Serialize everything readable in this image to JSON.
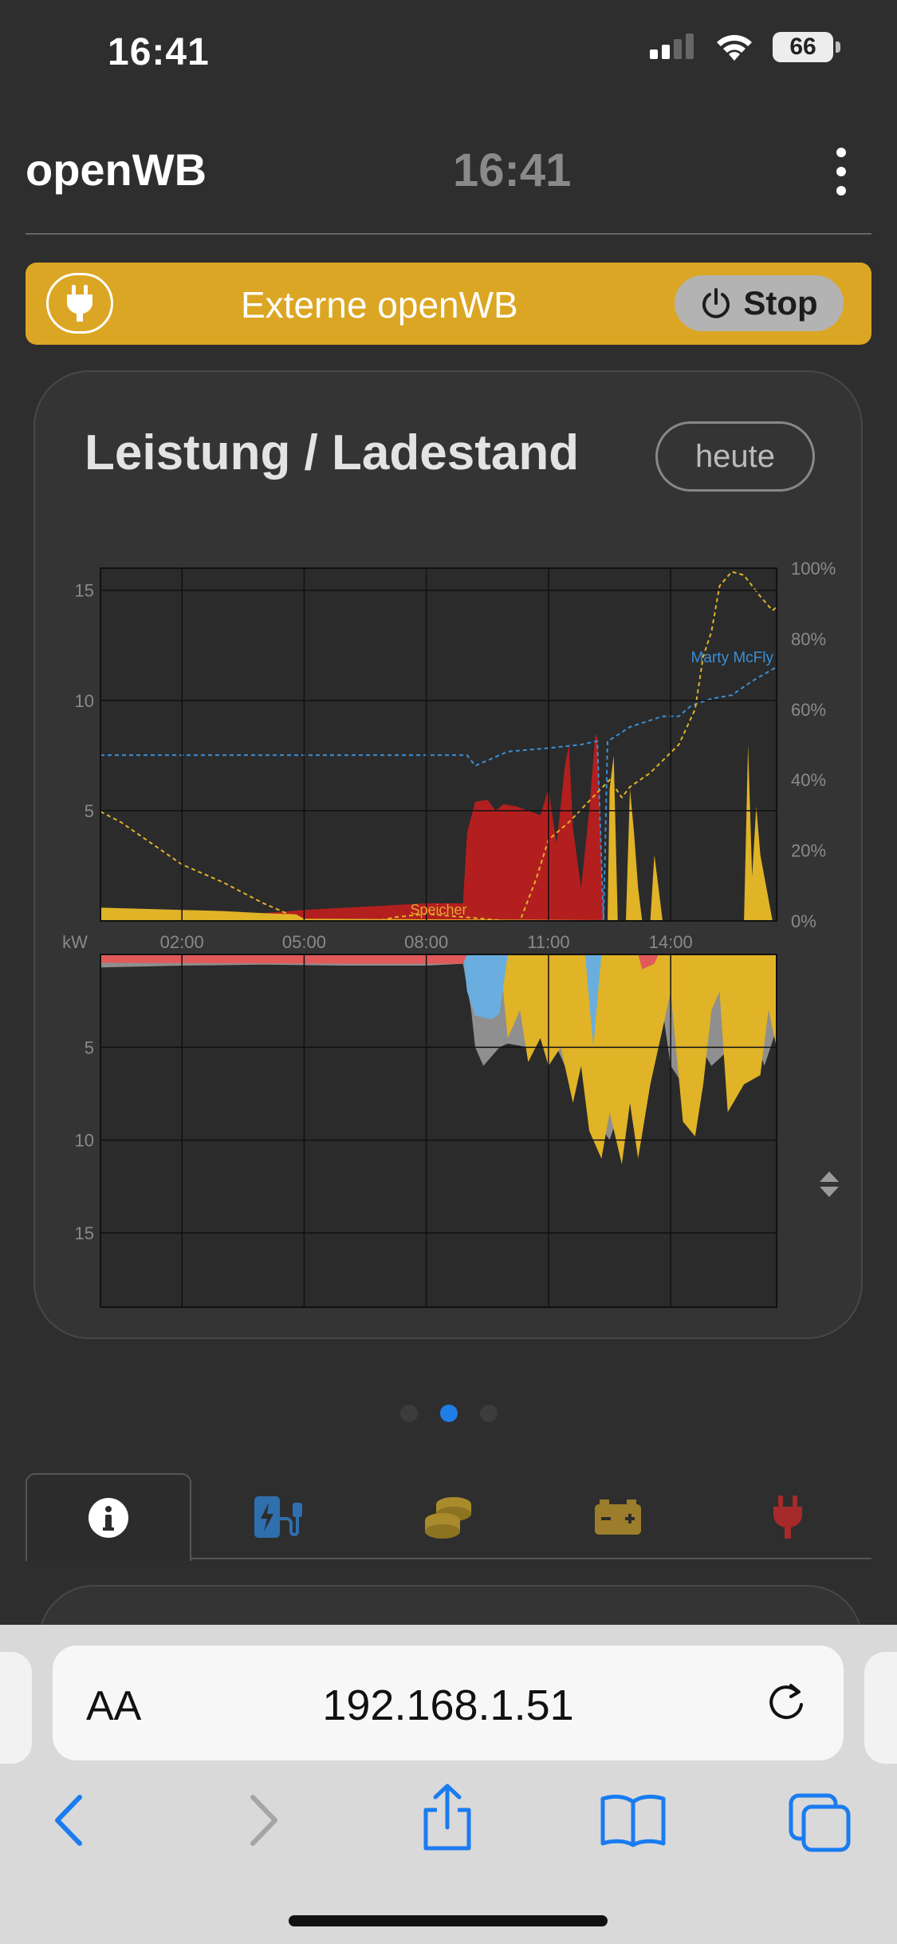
{
  "status_bar": {
    "time": "16:41",
    "battery": "66"
  },
  "app_bar": {
    "brand": "openWB",
    "clock": "16:41",
    "menu_icon": "kebab-menu-icon"
  },
  "charge_point": {
    "icon": "plug-icon",
    "name": "Externe openWB",
    "stop_label": "Stop"
  },
  "chart_card": {
    "title": "Leistung / Ladestand",
    "period_label": "heute",
    "chart_data": {
      "type": "area",
      "unit_label": "kW",
      "x_ticks": [
        "02:00",
        "05:00",
        "08:00",
        "11:00",
        "14:00"
      ],
      "xlim_hours": [
        0,
        16.6
      ],
      "upper": {
        "y_ticks": [
          5,
          10,
          15
        ],
        "ylim": [
          0,
          16
        ],
        "y2_ticks": [
          "0%",
          "20%",
          "40%",
          "60%",
          "80%",
          "100%"
        ],
        "y2lim": [
          0,
          100
        ],
        "series": [
          {
            "name": "",
            "color": "#b31f1f",
            "points": [
              [
                0,
                0.25
              ],
              [
                2,
                0.25
              ],
              [
                4,
                0.35
              ],
              [
                5,
                0.5
              ],
              [
                6,
                0.6
              ],
              [
                7,
                0.7
              ],
              [
                8,
                0.8
              ],
              [
                8.9,
                0.8
              ],
              [
                9,
                4
              ],
              [
                9.2,
                5.4
              ],
              [
                9.5,
                5.5
              ],
              [
                9.7,
                5
              ],
              [
                9.9,
                5.3
              ],
              [
                10.2,
                5.2
              ],
              [
                10.5,
                5
              ],
              [
                10.8,
                4.8
              ],
              [
                11,
                6
              ],
              [
                11.2,
                3.5
              ],
              [
                11.4,
                7
              ],
              [
                11.5,
                8
              ],
              [
                11.6,
                4.2
              ],
              [
                11.8,
                1.5
              ],
              [
                12,
                5
              ],
              [
                12.15,
                8.5
              ],
              [
                12.2,
                8.3
              ],
              [
                12.3,
                3
              ],
              [
                12.35,
                0
              ],
              [
                16.6,
                0
              ]
            ]
          },
          {
            "name": "",
            "color": "#e1b327",
            "points": [
              [
                0,
                0.6
              ],
              [
                1,
                0.55
              ],
              [
                2,
                0.5
              ],
              [
                3,
                0.45
              ],
              [
                4,
                0.35
              ],
              [
                4.8,
                0.3
              ],
              [
                5,
                0.1
              ],
              [
                16.6,
                0
              ]
            ]
          },
          {
            "name": "Speicher",
            "color": "#e0a72f",
            "label_only": true
          },
          {
            "name": "",
            "color": "#e1b327",
            "points": [
              [
                12.45,
                0
              ],
              [
                12.5,
                6
              ],
              [
                12.6,
                7.5
              ],
              [
                12.7,
                0
              ],
              [
                12.9,
                0
              ],
              [
                13,
                6
              ],
              [
                13.1,
                4
              ],
              [
                13.2,
                1.5
              ],
              [
                13.3,
                0
              ],
              [
                13.5,
                0
              ],
              [
                13.6,
                3
              ],
              [
                13.7,
                1.5
              ],
              [
                13.8,
                0
              ],
              [
                15.8,
                0
              ],
              [
                15.9,
                8
              ],
              [
                16,
                2
              ],
              [
                16.1,
                5.2
              ],
              [
                16.2,
                3
              ],
              [
                16.4,
                1
              ],
              [
                16.5,
                0
              ]
            ]
          }
        ],
        "soc_lines": [
          {
            "name": "Marty McFly",
            "color": "#3a8fd6",
            "points": [
              [
                0,
                47
              ],
              [
                9,
                47
              ],
              [
                9.2,
                44
              ],
              [
                9.6,
                46
              ],
              [
                10,
                48
              ],
              [
                11,
                49
              ],
              [
                11.8,
                50
              ],
              [
                12.2,
                51
              ],
              [
                12.35,
                0
              ],
              [
                12.45,
                51
              ],
              [
                12.6,
                52
              ],
              [
                13,
                55
              ],
              [
                13.8,
                58
              ],
              [
                14.2,
                58
              ],
              [
                14.5,
                61
              ],
              [
                15,
                63
              ],
              [
                15.5,
                64
              ],
              [
                16,
                68
              ],
              [
                16.6,
                72
              ]
            ]
          },
          {
            "name": "",
            "color": "#e1b327",
            "points": [
              [
                0,
                31
              ],
              [
                0.5,
                28
              ],
              [
                1,
                24
              ],
              [
                2,
                16
              ],
              [
                3,
                11
              ],
              [
                4,
                5
              ],
              [
                4.8,
                1
              ],
              [
                5,
                0
              ],
              [
                6.8,
                0
              ],
              [
                7.2,
                1
              ],
              [
                8,
                2
              ],
              [
                9,
                1
              ],
              [
                10,
                0
              ],
              [
                10.3,
                0
              ],
              [
                10.7,
                12
              ],
              [
                11,
                23
              ],
              [
                11.5,
                28
              ],
              [
                12,
                34
              ],
              [
                12.5,
                40
              ],
              [
                12.8,
                35
              ],
              [
                13,
                38
              ],
              [
                13.5,
                42
              ],
              [
                14.2,
                50
              ],
              [
                14.6,
                60
              ],
              [
                14.8,
                75
              ],
              [
                15,
                82
              ],
              [
                15.2,
                95
              ],
              [
                15.5,
                99
              ],
              [
                15.8,
                98
              ],
              [
                16.2,
                92
              ],
              [
                16.5,
                88
              ],
              [
                16.6,
                89
              ]
            ]
          }
        ]
      },
      "lower": {
        "y_ticks": [
          5,
          10,
          15
        ],
        "ylim": [
          0,
          19
        ],
        "series": [
          {
            "name": "",
            "color": "#8f8f8f",
            "points": [
              [
                0,
                0.7
              ],
              [
                2,
                0.6
              ],
              [
                4,
                0.55
              ],
              [
                6,
                0.6
              ],
              [
                8,
                0.6
              ],
              [
                8.9,
                0.5
              ],
              [
                9.1,
                3
              ],
              [
                9.2,
                5
              ],
              [
                9.4,
                6
              ],
              [
                9.6,
                5.5
              ],
              [
                9.8,
                5
              ],
              [
                10,
                4.8
              ],
              [
                10.5,
                5
              ],
              [
                11,
                4
              ],
              [
                11.3,
                5.5
              ],
              [
                11.5,
                6.5
              ],
              [
                11.7,
                3.5
              ],
              [
                12,
                6
              ],
              [
                12.2,
                9
              ],
              [
                12.5,
                10
              ],
              [
                12.8,
                8
              ],
              [
                13,
                6
              ],
              [
                13.2,
                8.5
              ],
              [
                13.5,
                5
              ],
              [
                13.8,
                3
              ],
              [
                14,
                6
              ],
              [
                14.3,
                7
              ],
              [
                14.6,
                4.5
              ],
              [
                15,
                6
              ],
              [
                15.5,
                5
              ],
              [
                16,
                4
              ],
              [
                16.3,
                6
              ],
              [
                16.6,
                4
              ]
            ]
          },
          {
            "name": "",
            "color": "#e1b327",
            "points": [
              [
                0,
                0
              ],
              [
                8.9,
                0
              ],
              [
                9.8,
                0
              ],
              [
                10,
                4.5
              ],
              [
                10.3,
                3
              ],
              [
                10.5,
                5.8
              ],
              [
                10.8,
                4.5
              ],
              [
                11,
                6
              ],
              [
                11.3,
                5
              ],
              [
                11.6,
                8
              ],
              [
                11.8,
                6
              ],
              [
                12,
                9.5
              ],
              [
                12.3,
                11
              ],
              [
                12.5,
                8.5
              ],
              [
                12.8,
                11.3
              ],
              [
                13,
                8
              ],
              [
                13.2,
                11
              ],
              [
                13.5,
                7
              ],
              [
                13.8,
                4
              ],
              [
                14,
                2
              ],
              [
                14.3,
                9
              ],
              [
                14.6,
                9.8
              ],
              [
                14.8,
                7
              ],
              [
                15,
                3
              ],
              [
                15.2,
                2
              ],
              [
                15.4,
                8.5
              ],
              [
                15.8,
                7
              ],
              [
                16.2,
                6.5
              ],
              [
                16.4,
                3
              ],
              [
                16.6,
                5
              ]
            ]
          },
          {
            "name": "",
            "color": "#6aaee0",
            "points": [
              [
                0,
                0
              ],
              [
                8.9,
                0
              ],
              [
                9,
                2
              ],
              [
                9.2,
                3.3
              ],
              [
                9.6,
                3.5
              ],
              [
                9.8,
                3.2
              ],
              [
                10,
                0
              ],
              [
                11.9,
                0
              ],
              [
                12.1,
                5
              ],
              [
                12.3,
                0
              ],
              [
                16.6,
                0
              ]
            ]
          },
          {
            "name": "",
            "color": "#e05a5a",
            "points": [
              [
                0,
                0.45
              ],
              [
                6,
                0.5
              ],
              [
                8.9,
                0.5
              ],
              [
                9,
                0
              ],
              [
                13.2,
                0
              ],
              [
                13.3,
                0.8
              ],
              [
                13.6,
                0.5
              ],
              [
                13.7,
                0
              ],
              [
                16.6,
                0
              ]
            ]
          }
        ]
      }
    }
  },
  "pager": {
    "count": 3,
    "active": 1
  },
  "tabs": [
    {
      "icon": "info-icon",
      "color": "#ffffff"
    },
    {
      "icon": "ev-charger-icon",
      "color": "#2f6fad"
    },
    {
      "icon": "coins-icon",
      "color": "#a98b2c"
    },
    {
      "icon": "battery-icon",
      "color": "#9b7d2b"
    },
    {
      "icon": "plug-icon",
      "color": "#a62a2a"
    }
  ],
  "browser": {
    "text_size_label": "AA",
    "address": "192.168.1.51"
  }
}
